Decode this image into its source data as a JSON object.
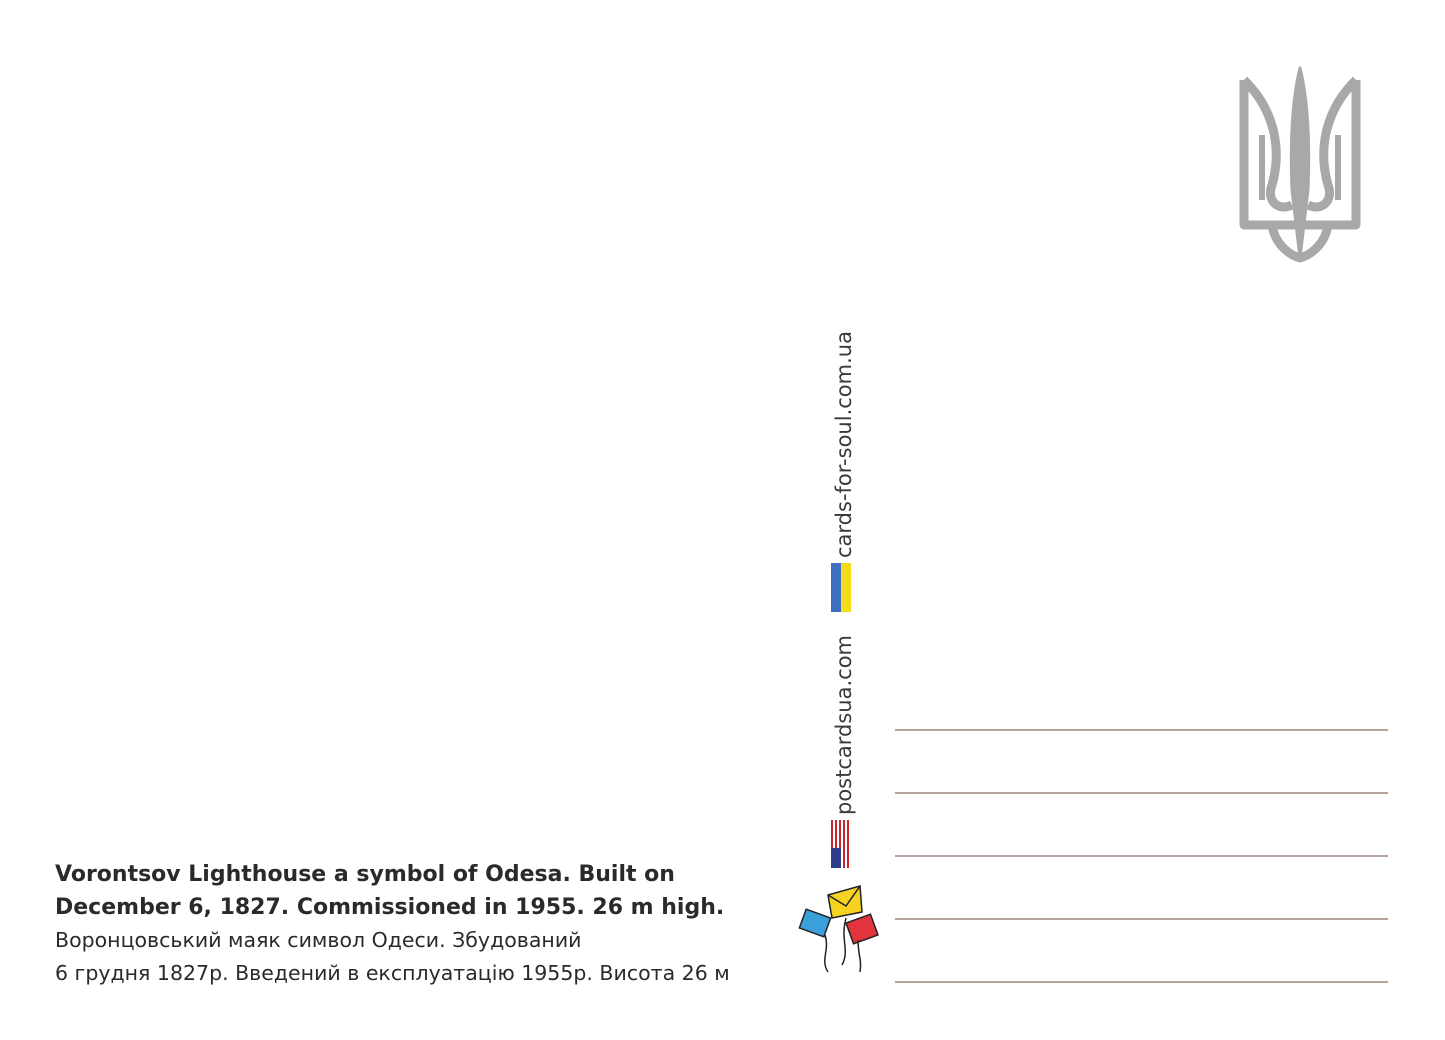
{
  "caption": {
    "english": [
      "Vorontsov Lighthouse a symbol of Odesa. Built on",
      "December 6, 1827. Commissioned in 1955. 26 m high."
    ],
    "ukrainian": [
      "Воронцовський маяк символ Одеси. Збудований",
      "6 грудня 1827р. Введений в експлуатацію 1955р. Висота 26 м"
    ]
  },
  "websites": [
    "cards-for-soul.com.ua",
    "postcardsua.com"
  ]
}
